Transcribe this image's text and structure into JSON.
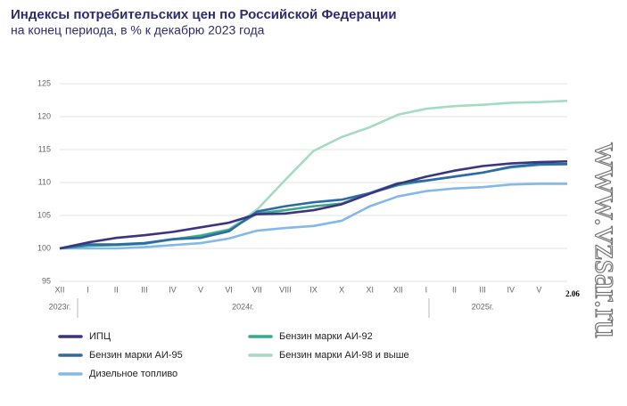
{
  "chart_data": {
    "type": "line",
    "title": "Индексы потребительских цен по Российской Федерации",
    "subtitle": "на конец периода, в % к декабрю 2023 года",
    "categories": [
      "XII",
      "I",
      "II",
      "III",
      "IV",
      "V",
      "VI",
      "VII",
      "VIII",
      "IX",
      "X",
      "XI",
      "XII",
      "I",
      "II",
      "III",
      "IV",
      "V",
      "2.06"
    ],
    "year_labels": [
      "2023г.",
      "2024г.",
      "2025г."
    ],
    "ylim": [
      95,
      125
    ],
    "yticks": [
      95,
      100,
      105,
      110,
      115,
      120,
      125
    ],
    "grid": true,
    "series": [
      {
        "name": "ИПЦ",
        "color": "#3b3580",
        "values": [
          100,
          100.9,
          101.6,
          102.0,
          102.5,
          103.2,
          103.9,
          105.2,
          105.3,
          105.8,
          106.7,
          108.3,
          109.8,
          110.9,
          111.8,
          112.5,
          112.9,
          113.1,
          113.2
        ]
      },
      {
        "name": "Бензин марки АИ-92",
        "color": "#3aa68a",
        "values": [
          100,
          100.4,
          100.5,
          100.7,
          101.4,
          101.9,
          102.8,
          105.3,
          105.8,
          106.4,
          106.8,
          108.4,
          109.6,
          110.3,
          110.9,
          111.5,
          112.3,
          112.7,
          112.8
        ]
      },
      {
        "name": "Бензин марки АИ-95",
        "color": "#2e6aa8",
        "values": [
          100,
          100.6,
          100.6,
          100.8,
          101.4,
          101.6,
          102.6,
          105.6,
          106.4,
          107.0,
          107.4,
          108.4,
          109.9,
          110.3,
          110.9,
          111.5,
          112.4,
          112.8,
          112.8
        ]
      },
      {
        "name": "Бензин марки АИ-98 и выше",
        "color": "#a3dcc2",
        "values": [
          100,
          100.5,
          100.6,
          100.8,
          101.3,
          102.0,
          102.9,
          105.9,
          110.4,
          114.8,
          116.9,
          118.4,
          120.3,
          121.2,
          121.6,
          121.8,
          122.1,
          122.2,
          122.4
        ]
      },
      {
        "name": "Дизельное топливо",
        "color": "#82b9e8",
        "values": [
          100,
          100,
          100,
          100.2,
          100.5,
          100.8,
          101.5,
          102.7,
          103.1,
          103.4,
          104.2,
          106.4,
          107.9,
          108.7,
          109.1,
          109.3,
          109.7,
          109.8,
          109.8
        ]
      }
    ],
    "watermark": "www.vzsar.ru"
  }
}
